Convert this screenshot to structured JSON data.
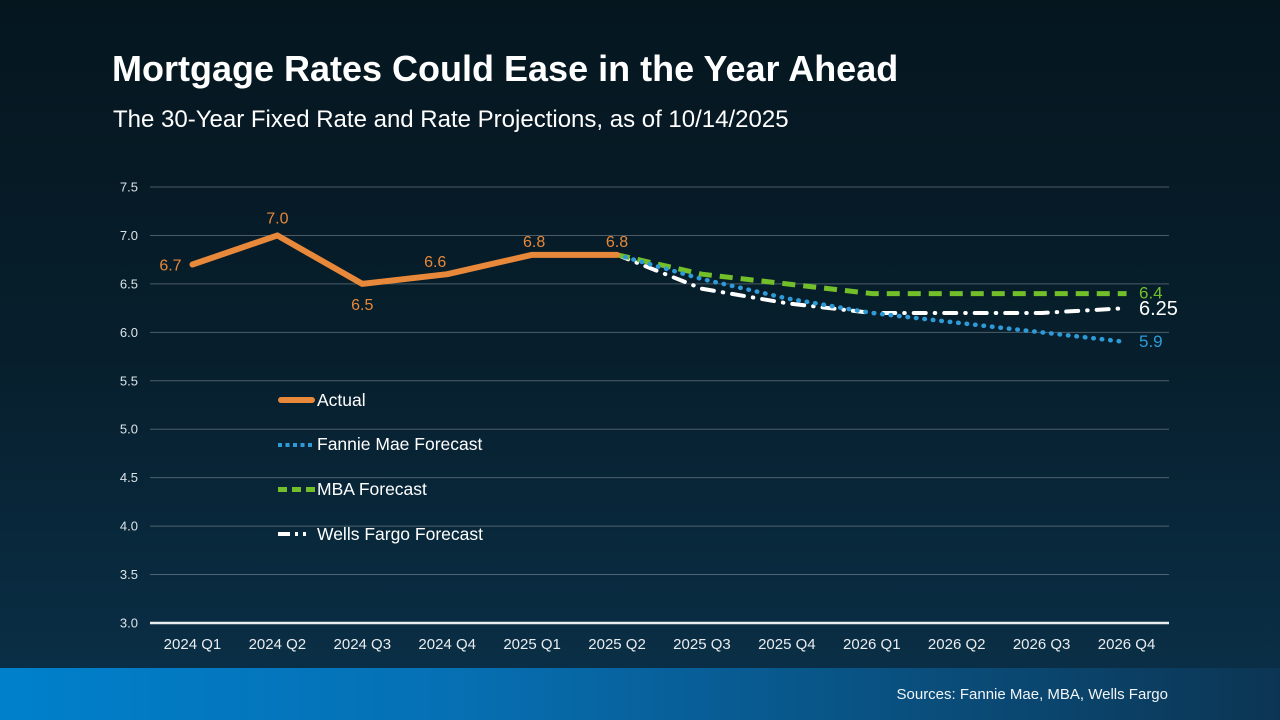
{
  "slide": {
    "title": "Mortgage Rates Could Ease in the Year Ahead",
    "subtitle": "The 30-Year Fixed Rate and Rate Projections, as of 10/14/2025",
    "source": "Sources: Fannie Mae, MBA, Wells Fargo"
  },
  "colors": {
    "actual": "#E8883A",
    "fannie_mae": "#2E9BD8",
    "mba": "#72BF2A",
    "wells_fargo": "#FFFFFF",
    "grid": "#84929B",
    "axis": "#E9EDF0",
    "footer_left": "#0080CB",
    "footer_right": "#0C3553"
  },
  "chart_data": {
    "type": "line",
    "title": "Mortgage Rates Could Ease in the Year Ahead",
    "subtitle": "The 30-Year Fixed Rate and Rate Projections, as of 10/14/2025",
    "categories": [
      "2024 Q1",
      "2024 Q2",
      "2024 Q3",
      "2024 Q4",
      "2025 Q1",
      "2025 Q2",
      "2025 Q3",
      "2025 Q4",
      "2026 Q1",
      "2026 Q2",
      "2026 Q3",
      "2026 Q4"
    ],
    "ylim": [
      3.0,
      7.5
    ],
    "yticks": [
      "7.5",
      "7.0",
      "6.5",
      "6.0",
      "5.5",
      "5.0",
      "4.5",
      "4.0",
      "3.5",
      "3.0"
    ],
    "grid": "on",
    "legend_position": "inside-left",
    "series": [
      {
        "name": "Actual",
        "style": "solid",
        "color": "#E8883A",
        "start_index": 0,
        "values": [
          6.7,
          7.0,
          6.5,
          6.6,
          6.8,
          6.8
        ],
        "point_labels": [
          "6.7",
          "7.0",
          "6.5",
          "6.6",
          "6.8",
          "6.8"
        ],
        "end_label": ""
      },
      {
        "name": "Fannie Mae Forecast",
        "style": "dotted",
        "color": "#2E9BD8",
        "start_index": 5,
        "values": [
          6.8,
          6.55,
          6.35,
          6.2,
          6.1,
          6.0,
          5.9
        ],
        "point_labels": [],
        "end_label": "5.9"
      },
      {
        "name": "MBA Forecast",
        "style": "dashed",
        "color": "#72BF2A",
        "start_index": 5,
        "values": [
          6.8,
          6.6,
          6.5,
          6.4,
          6.4,
          6.4,
          6.4
        ],
        "point_labels": [],
        "end_label": "6.4"
      },
      {
        "name": "Wells Fargo Forecast",
        "style": "dashdot",
        "color": "#FFFFFF",
        "start_index": 5,
        "values": [
          6.8,
          6.45,
          6.3,
          6.2,
          6.2,
          6.2,
          6.25
        ],
        "point_labels": [],
        "end_label": "6.25"
      }
    ]
  }
}
